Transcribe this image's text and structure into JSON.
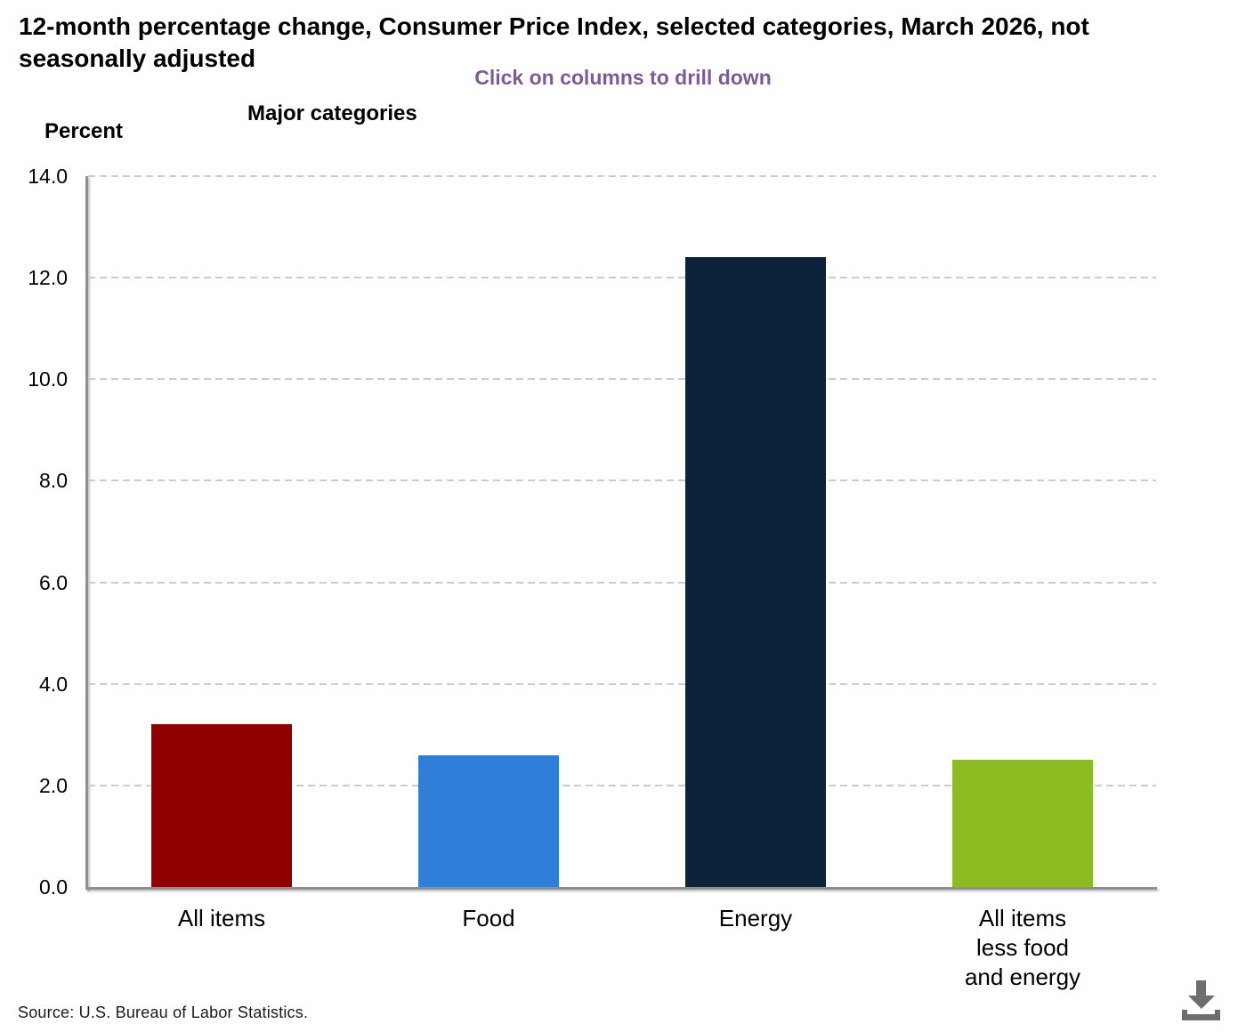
{
  "chart_data": {
    "type": "bar",
    "title": "12-month percentage change, Consumer Price Index, selected categories, March 2026, not seasonally adjusted",
    "title_lines": [
      "12-month percentage change, Consumer Price Index, selected categories, March 2026, not",
      "seasonally adjusted"
    ],
    "subtitle": "Click on columns to drill down",
    "xlabel": "Major categories",
    "ylabel": "Percent",
    "categories": [
      "All items",
      "Food",
      "Energy",
      "All items less food and energy"
    ],
    "category_label_lines": [
      [
        "All items"
      ],
      [
        "Food"
      ],
      [
        "Energy"
      ],
      [
        "All items",
        "less food",
        "and energy"
      ]
    ],
    "values": [
      3.2,
      2.6,
      12.4,
      2.5
    ],
    "bar_colors": [
      "#910000",
      "#2f7ed8",
      "#0d233a",
      "#8bbc21"
    ],
    "ylim": [
      0,
      14
    ],
    "ytick_step": 2,
    "ytick_labels": [
      "0.0",
      "2.0",
      "4.0",
      "6.0",
      "8.0",
      "10.0",
      "12.0",
      "14.0"
    ],
    "grid": "dashed-horizontal",
    "legend": "none",
    "source": "Source: U.S. Bureau of Labor Statistics.",
    "colors": {
      "subtitle_purple": "#7d5a96",
      "axis_line": "#8f8f8f",
      "gridline": "#cccccc",
      "download_icon": "#6e6e6e",
      "text": "#000000"
    }
  },
  "icons": {
    "download": "download-arrow-into-tray"
  }
}
